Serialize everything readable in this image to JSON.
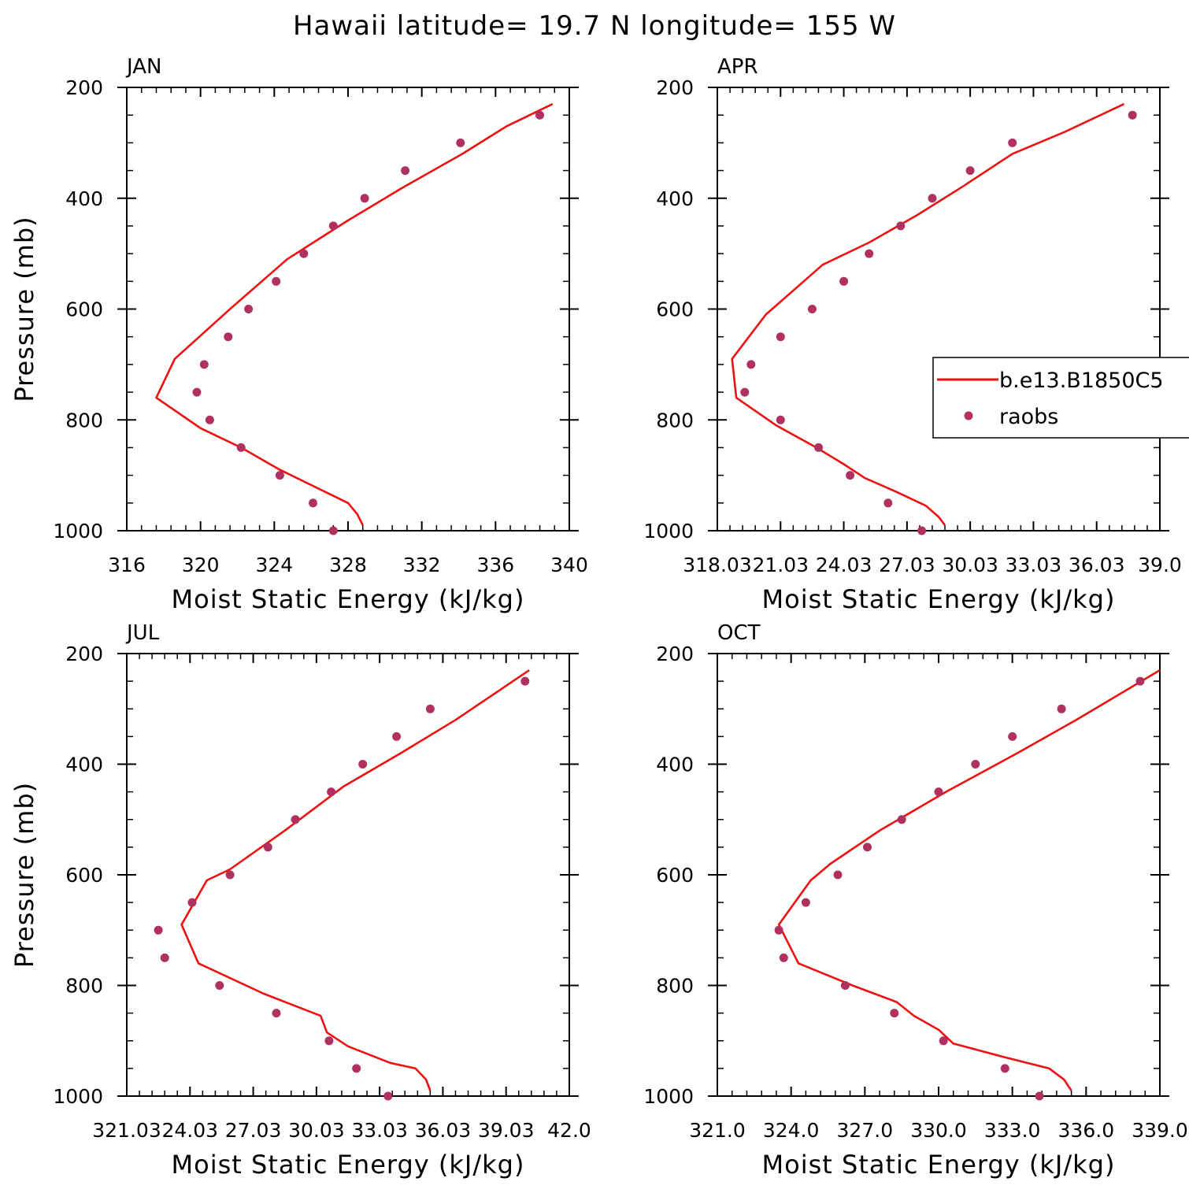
{
  "title": "Hawaii  latitude= 19.7 N longitude= 155 W",
  "legend": {
    "model": "b.e13.B1850C5",
    "obs": "raobs"
  },
  "colors": {
    "model_line": "#ee1111",
    "obs_points": "#b03060",
    "axes": "#000000"
  },
  "chart_data": [
    {
      "type": "line",
      "panel": "JAN",
      "xlabel": "Moist Static Energy (kJ/kg)",
      "ylabel": "Pressure (mb)",
      "xlim": [
        316,
        340
      ],
      "ylim": [
        200,
        1000
      ],
      "y_inverted": true,
      "xticks": [
        316,
        320,
        324,
        328,
        332,
        336,
        340
      ],
      "xtick_labels": [
        "316",
        "320",
        "324",
        "328",
        "332",
        "336",
        "340"
      ],
      "yticks": [
        200,
        400,
        600,
        800,
        1000
      ],
      "ytick_labels": [
        "200",
        "400",
        "600",
        "800",
        "1000"
      ],
      "series": [
        {
          "name": "b.e13.B1850C5",
          "kind": "line",
          "x": [
            339.1,
            336.6,
            334.2,
            331.0,
            328.0,
            324.7,
            321.6,
            318.6,
            317.6,
            320.0,
            322.2,
            324.3,
            328.0,
            328.5,
            328.8
          ],
          "y": [
            230,
            270,
            320,
            380,
            440,
            510,
            600,
            690,
            760,
            815,
            850,
            890,
            950,
            970,
            990
          ]
        },
        {
          "name": "raobs",
          "kind": "scatter",
          "x": [
            338.4,
            334.1,
            331.1,
            328.9,
            327.2,
            325.6,
            324.1,
            322.6,
            321.5,
            320.2,
            319.8,
            320.5,
            322.2,
            324.3,
            326.1,
            327.2
          ],
          "y": [
            250,
            300,
            350,
            400,
            450,
            500,
            550,
            600,
            650,
            700,
            750,
            800,
            850,
            900,
            950,
            1000
          ]
        }
      ]
    },
    {
      "type": "line",
      "panel": "APR",
      "xlabel": "Moist Static Energy (kJ/kg)",
      "ylabel": "",
      "xlim": [
        318.0,
        339.0
      ],
      "ylim": [
        200,
        1000
      ],
      "y_inverted": true,
      "xticks": [
        318,
        321,
        324,
        327,
        330,
        333,
        336,
        339
      ],
      "xtick_labels": [
        "318.03",
        "21.03",
        "24.03",
        "27.03",
        "30.03",
        "33.03",
        "36.03",
        "39.0"
      ],
      "yticks": [
        200,
        400,
        600,
        800,
        1000
      ],
      "ytick_labels": [
        "200",
        "400",
        "600",
        "800",
        "1000"
      ],
      "series": [
        {
          "name": "b.e13.B1850C5",
          "kind": "line",
          "x": [
            337.3,
            334.5,
            332.0,
            329.6,
            327.5,
            325.2,
            323.0,
            320.3,
            318.7,
            318.9,
            320.8,
            322.7,
            324.0,
            325.0,
            326.5,
            327.9,
            328.5,
            328.8
          ],
          "y": [
            230,
            280,
            320,
            380,
            430,
            480,
            520,
            610,
            690,
            760,
            810,
            850,
            880,
            905,
            930,
            955,
            975,
            990
          ]
        },
        {
          "name": "raobs",
          "kind": "scatter",
          "x": [
            337.7,
            332.0,
            330.0,
            328.2,
            326.7,
            325.2,
            324.0,
            322.5,
            321.0,
            319.6,
            319.3,
            321.0,
            322.8,
            324.3,
            326.1,
            327.7
          ],
          "y": [
            250,
            300,
            350,
            400,
            450,
            500,
            550,
            600,
            650,
            700,
            750,
            800,
            850,
            900,
            950,
            1000
          ]
        }
      ]
    },
    {
      "type": "line",
      "panel": "JUL",
      "xlabel": "Moist Static Energy (kJ/kg)",
      "ylabel": "Pressure (mb)",
      "xlim": [
        321.0,
        342.0
      ],
      "ylim": [
        200,
        1000
      ],
      "y_inverted": true,
      "xticks": [
        321,
        324,
        327,
        330,
        333,
        336,
        339,
        342
      ],
      "xtick_labels": [
        "321.03",
        "24.03",
        "27.03",
        "30.03",
        "33.03",
        "36.03",
        "39.03",
        "42.0"
      ],
      "yticks": [
        200,
        400,
        600,
        800,
        1000
      ],
      "ytick_labels": [
        "200",
        "400",
        "600",
        "800",
        "1000"
      ],
      "series": [
        {
          "name": "b.e13.B1850C5",
          "kind": "line",
          "x": [
            340.1,
            336.6,
            334.0,
            331.3,
            328.5,
            325.9,
            324.8,
            323.6,
            324.4,
            327.5,
            330.2,
            330.5,
            331.5,
            333.5,
            334.7,
            335.2,
            335.4
          ],
          "y": [
            230,
            320,
            380,
            440,
            520,
            590,
            610,
            690,
            760,
            815,
            855,
            885,
            910,
            940,
            950,
            970,
            990
          ]
        },
        {
          "name": "raobs",
          "kind": "scatter",
          "x": [
            339.9,
            335.4,
            333.8,
            332.2,
            330.7,
            329.0,
            327.7,
            325.9,
            324.1,
            322.5,
            322.8,
            325.4,
            328.1,
            330.6,
            331.9,
            333.4
          ],
          "y": [
            250,
            300,
            350,
            400,
            450,
            500,
            550,
            600,
            650,
            700,
            750,
            800,
            850,
            900,
            950,
            1000
          ]
        }
      ]
    },
    {
      "type": "line",
      "panel": "OCT",
      "xlabel": "Moist Static Energy (kJ/kg)",
      "ylabel": "",
      "xlim": [
        321.0,
        339.0
      ],
      "ylim": [
        200,
        1000
      ],
      "y_inverted": true,
      "xticks": [
        321,
        324,
        327,
        330,
        333,
        336,
        339
      ],
      "xtick_labels": [
        "321.0",
        "324.0",
        "327.0",
        "330.0",
        "333.0",
        "336.0",
        "339.0"
      ],
      "yticks": [
        200,
        400,
        600,
        800,
        1000
      ],
      "ytick_labels": [
        "200",
        "400",
        "600",
        "800",
        "1000"
      ],
      "series": [
        {
          "name": "b.e13.B1850C5",
          "kind": "line",
          "x": [
            339.0,
            335.6,
            333.2,
            330.3,
            327.6,
            325.6,
            324.8,
            323.5,
            324.3,
            326.5,
            328.3,
            329.0,
            330.0,
            330.6,
            332.7,
            334.5,
            335.1,
            335.4
          ],
          "y": [
            230,
            320,
            380,
            450,
            520,
            580,
            610,
            690,
            760,
            800,
            830,
            855,
            880,
            905,
            930,
            950,
            970,
            990
          ]
        },
        {
          "name": "raobs",
          "kind": "scatter",
          "x": [
            338.2,
            335.0,
            333.0,
            331.5,
            330.0,
            328.5,
            327.1,
            325.9,
            324.6,
            323.5,
            323.7,
            326.2,
            328.2,
            330.2,
            332.7,
            334.1
          ],
          "y": [
            250,
            300,
            350,
            400,
            450,
            500,
            550,
            600,
            650,
            700,
            750,
            800,
            850,
            900,
            950,
            1000
          ]
        }
      ]
    }
  ]
}
